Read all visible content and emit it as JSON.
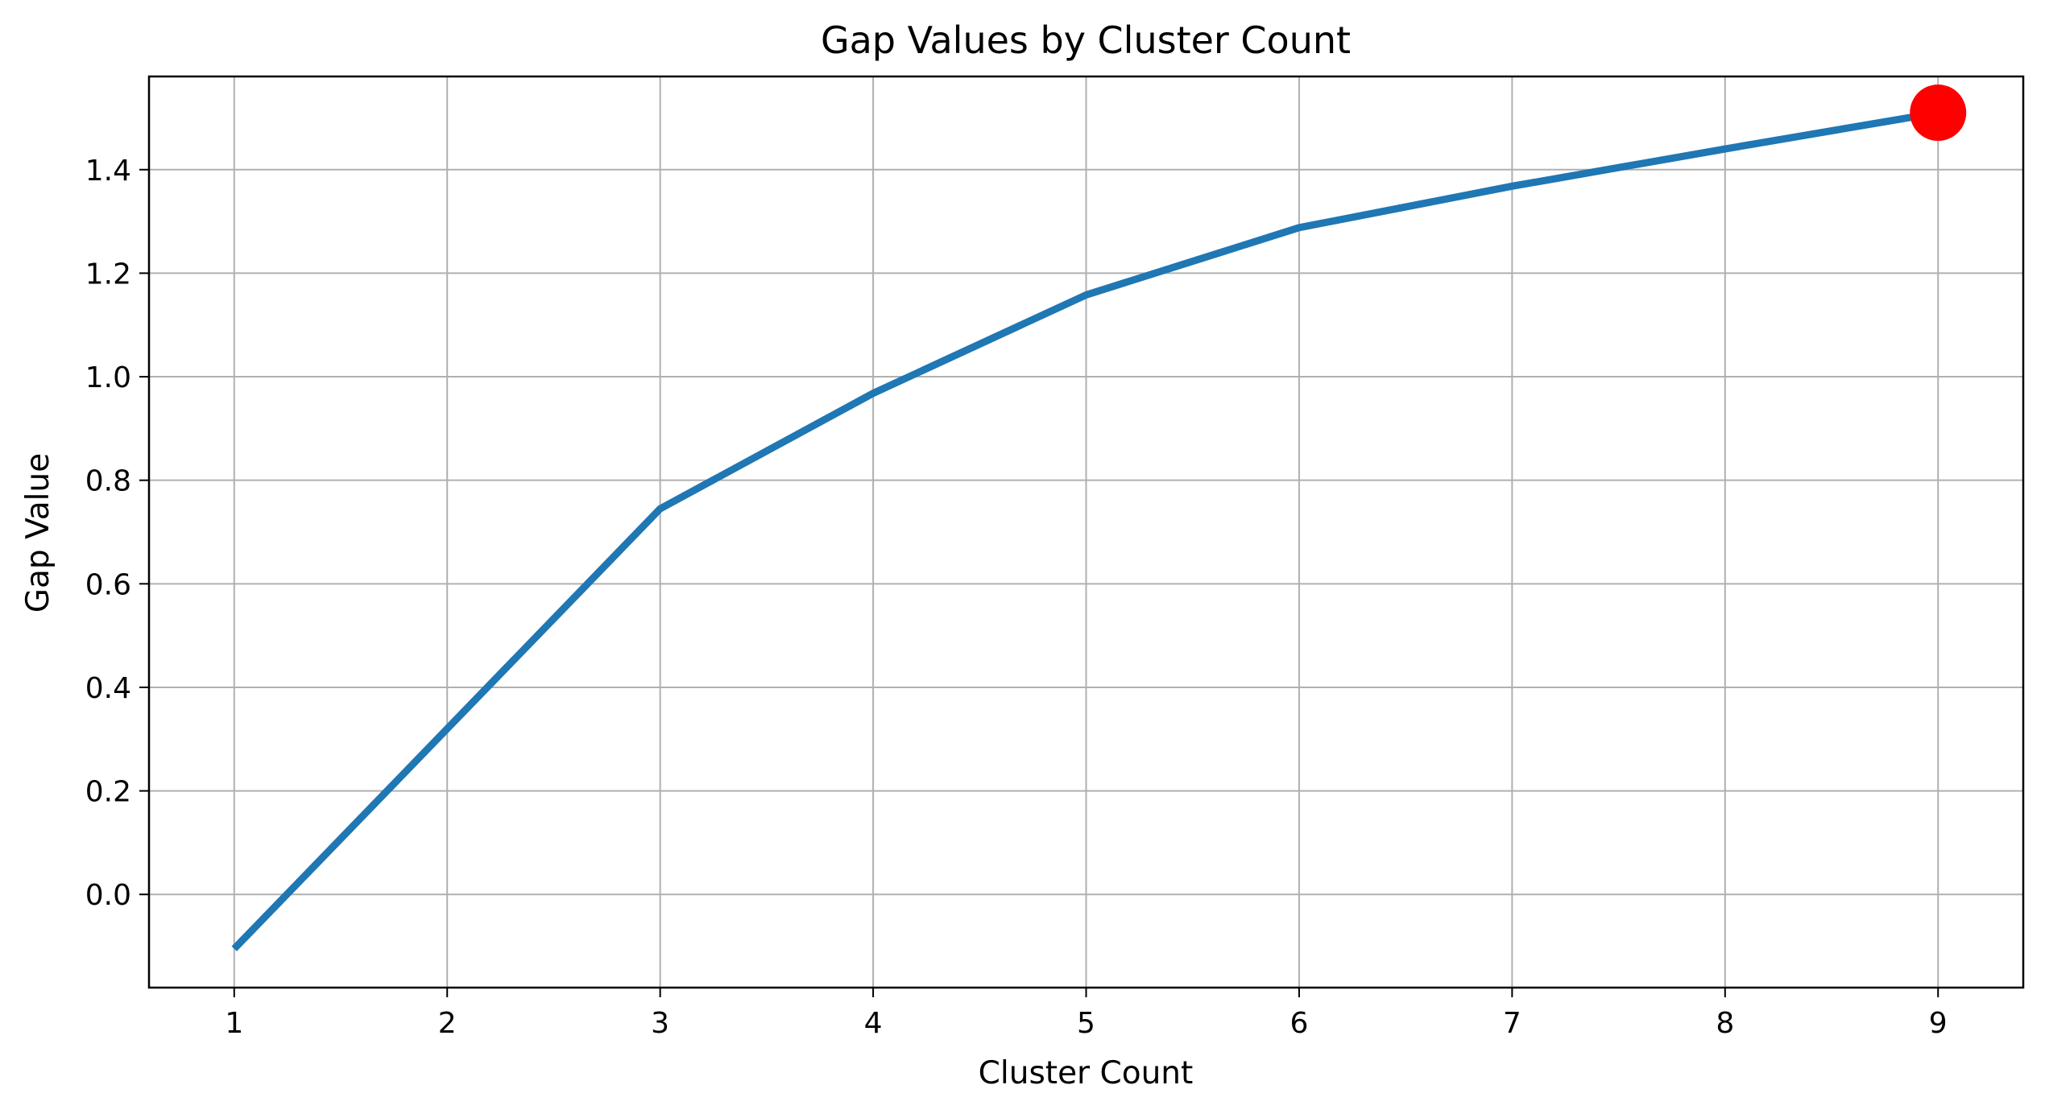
{
  "chart_data": {
    "type": "line",
    "title": "Gap Values by Cluster Count",
    "xlabel": "Cluster Count",
    "ylabel": "Gap Value",
    "x": [
      1,
      2,
      3,
      4,
      5,
      6,
      7,
      8,
      9
    ],
    "series": [
      {
        "values": [
          -0.105,
          0.32,
          0.745,
          0.968,
          1.158,
          1.288,
          1.368,
          1.44,
          1.51
        ],
        "color": "#1f77b4"
      }
    ],
    "highlight": {
      "x": 9,
      "y": 1.51,
      "color": "#ff0000"
    },
    "xlim": [
      0.6,
      9.4
    ],
    "ylim": [
      -0.18,
      1.58
    ],
    "xticks": [
      1,
      2,
      3,
      4,
      5,
      6,
      7,
      8,
      9
    ],
    "yticks": [
      0.0,
      0.2,
      0.4,
      0.6,
      0.8,
      1.0,
      1.2,
      1.4
    ],
    "ytick_labels": [
      "0.0",
      "0.2",
      "0.4",
      "0.6",
      "0.8",
      "1.0",
      "1.2",
      "1.4"
    ],
    "grid": true,
    "legend": false
  }
}
